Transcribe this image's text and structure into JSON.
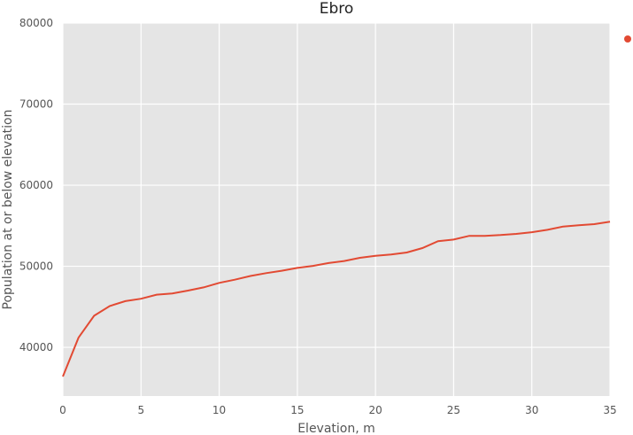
{
  "chart_data": {
    "type": "line",
    "title": "Ebro",
    "xlabel": "Elevation, m",
    "ylabel": "Population at or below elevation",
    "xlim": [
      0,
      35
    ],
    "ylim": [
      34000,
      80000
    ],
    "xticks": [
      0,
      5,
      10,
      15,
      20,
      25,
      30,
      35
    ],
    "yticks": [
      40000,
      50000,
      60000,
      70000,
      80000
    ],
    "grid": true,
    "legend": "marker only, top-right outside plot",
    "colors": {
      "line": "#e24a33",
      "plot_bg": "#e5e5e5",
      "grid": "#ffffff",
      "text": "#555555"
    },
    "series": [
      {
        "x": [
          0,
          1,
          2,
          3,
          4,
          5,
          6,
          7,
          8,
          9,
          10,
          11,
          12,
          13,
          14,
          15,
          16,
          17,
          18,
          19,
          20,
          21,
          22,
          23,
          24,
          25,
          26,
          27,
          28,
          29,
          30,
          31,
          32,
          33,
          34,
          35
        ],
        "y": [
          36400,
          41200,
          43900,
          45100,
          45700,
          46000,
          46500,
          46650,
          47000,
          47400,
          47950,
          48350,
          48800,
          49150,
          49450,
          49800,
          50050,
          50400,
          50650,
          51050,
          51300,
          51450,
          51700,
          52250,
          53100,
          53300,
          53750,
          53750,
          53850,
          54000,
          54200,
          54500,
          54900,
          55050,
          55200,
          55500
        ]
      }
    ]
  }
}
